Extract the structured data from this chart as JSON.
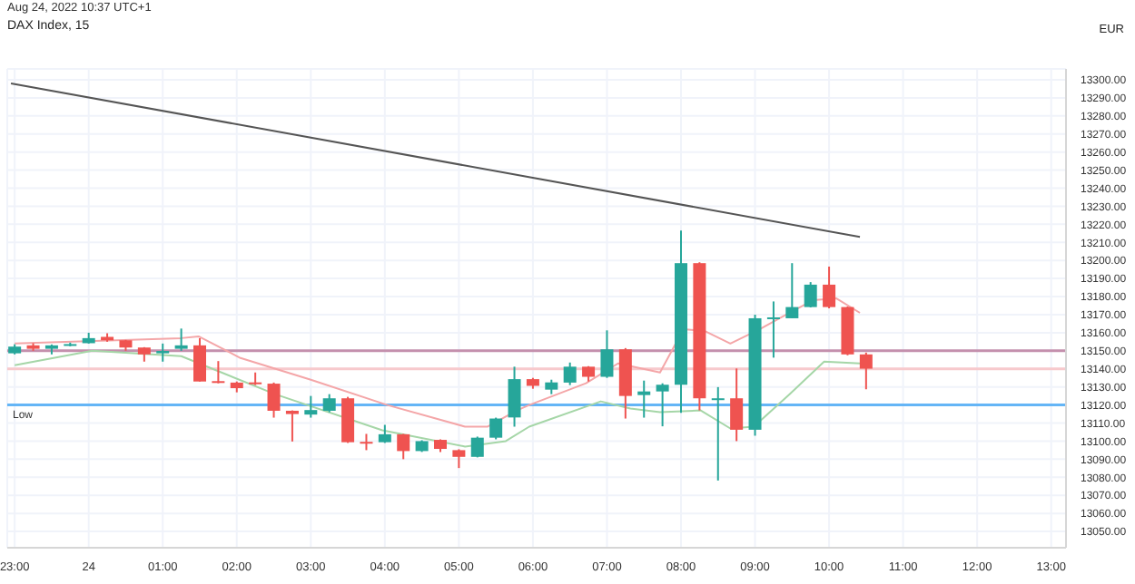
{
  "chart_data": {
    "type": "candlestick",
    "title": "DAX Index, 15",
    "annotations": [
      "Aug 24, 2022 10:37 UTC+1"
    ],
    "ylabel": "EUR",
    "grid": true,
    "xlim": [
      "2022-08-23T22:54",
      "2022-08-24T13:12"
    ],
    "xticks": [
      {
        "value": "2022-08-23T23:00",
        "label": "23:00"
      },
      {
        "value": "2022-08-24T00:00",
        "label": "24"
      },
      {
        "value": "2022-08-24T01:00",
        "label": "01:00"
      },
      {
        "value": "2022-08-24T02:00",
        "label": "02:00"
      },
      {
        "value": "2022-08-24T03:00",
        "label": "03:00"
      },
      {
        "value": "2022-08-24T04:00",
        "label": "04:00"
      },
      {
        "value": "2022-08-24T05:00",
        "label": "05:00"
      },
      {
        "value": "2022-08-24T06:00",
        "label": "06:00"
      },
      {
        "value": "2022-08-24T07:00",
        "label": "07:00"
      },
      {
        "value": "2022-08-24T08:00",
        "label": "08:00"
      },
      {
        "value": "2022-08-24T09:00",
        "label": "09:00"
      },
      {
        "value": "2022-08-24T10:00",
        "label": "10:00"
      },
      {
        "value": "2022-08-24T11:00",
        "label": "11:00"
      },
      {
        "value": "2022-08-24T12:00",
        "label": "12:00"
      },
      {
        "value": "2022-08-24T13:00",
        "label": "13:00"
      }
    ],
    "ylim": [
      13041,
      13306
    ],
    "yticks": [
      {
        "value": 13050,
        "label": "13050.00"
      },
      {
        "value": 13060,
        "label": "13060.00"
      },
      {
        "value": 13070,
        "label": "13070.00"
      },
      {
        "value": 13080,
        "label": "13080.00"
      },
      {
        "value": 13090,
        "label": "13090.00"
      },
      {
        "value": 13100,
        "label": "13100.00"
      },
      {
        "value": 13110,
        "label": "13110.00"
      },
      {
        "value": 13120,
        "label": "13120.00"
      },
      {
        "value": 13130,
        "label": "13130.00"
      },
      {
        "value": 13140,
        "label": "13140.00"
      },
      {
        "value": 13150,
        "label": "13150.00"
      },
      {
        "value": 13160,
        "label": "13160.00"
      },
      {
        "value": 13170,
        "label": "13170.00"
      },
      {
        "value": 13180,
        "label": "13180.00"
      },
      {
        "value": 13190,
        "label": "13190.00"
      },
      {
        "value": 13200,
        "label": "13200.00"
      },
      {
        "value": 13210,
        "label": "13210.00"
      },
      {
        "value": 13220,
        "label": "13220.00"
      },
      {
        "value": 13230,
        "label": "13230.00"
      },
      {
        "value": 13240,
        "label": "13240.00"
      },
      {
        "value": 13250,
        "label": "13250.00"
      },
      {
        "value": 13260,
        "label": "13260.00"
      },
      {
        "value": 13270,
        "label": "13270.00"
      },
      {
        "value": 13280,
        "label": "13280.00"
      },
      {
        "value": 13290,
        "label": "13290.00"
      },
      {
        "value": 13300,
        "label": "13300.00"
      }
    ],
    "ref_lines": [
      {
        "axis": "y",
        "value": 13150,
        "color": "#c490ad"
      },
      {
        "axis": "y",
        "value": 13140,
        "color": "#f7c9cc"
      },
      {
        "axis": "y",
        "value": 13120,
        "label": "Low",
        "color": "#64b5f6"
      }
    ],
    "series": [
      {
        "type": "line",
        "color": "#f4a6a8",
        "x": [
          "2022-08-23T23:00",
          "2022-08-24T01:15",
          "2022-08-24T01:29",
          "2022-08-24T02:03",
          "2022-08-24T03:00",
          "2022-08-24T04:02",
          "2022-08-24T05:05",
          "2022-08-24T05:23",
          "2022-08-24T05:47",
          "2022-08-24T05:57",
          "2022-08-24T06:43",
          "2022-08-24T07:09",
          "2022-08-24T07:43",
          "2022-08-24T08:02",
          "2022-08-24T08:19",
          "2022-08-24T08:40",
          "2022-08-24T09:04",
          "2022-08-24T09:28",
          "2022-08-24T09:47",
          "2022-08-24T10:06",
          "2022-08-24T10:25"
        ],
        "values": [
          13154,
          13157,
          13158,
          13146,
          13134,
          13120,
          13108,
          13108,
          13117,
          13120,
          13132,
          13143,
          13138,
          13162,
          13161,
          13154,
          13162,
          13171,
          13178,
          13179,
          13171
        ]
      },
      {
        "type": "line",
        "color": "#a5d6a7",
        "x": [
          "2022-08-23T23:00",
          "2022-08-24T00:03",
          "2022-08-24T01:15",
          "2022-08-24T02:31",
          "2022-08-24T03:58",
          "2022-08-24T05:05",
          "2022-08-24T05:38",
          "2022-08-24T05:57",
          "2022-08-24T06:55",
          "2022-08-24T07:19",
          "2022-08-24T07:43",
          "2022-08-24T08:16",
          "2022-08-24T08:40",
          "2022-08-24T08:59",
          "2022-08-24T09:28",
          "2022-08-24T09:56",
          "2022-08-24T10:25"
        ],
        "values": [
          13142,
          13150,
          13147,
          13126,
          13106,
          13097,
          13100,
          13108,
          13122,
          13118,
          13116,
          13117,
          13107,
          13108,
          13126,
          13144,
          13143
        ]
      },
      {
        "type": "line",
        "color": "#555555",
        "x": [
          "2022-08-23T22:57",
          "2022-08-24T10:25"
        ],
        "values": [
          13298,
          13213
        ]
      },
      {
        "x": [
          "2022-08-23T23:00",
          "2022-08-23T23:15",
          "2022-08-23T23:30",
          "2022-08-23T23:45",
          "2022-08-24T00:00",
          "2022-08-24T00:15",
          "2022-08-24T00:30",
          "2022-08-24T00:45",
          "2022-08-24T01:00",
          "2022-08-24T01:15",
          "2022-08-24T01:30",
          "2022-08-24T01:45",
          "2022-08-24T02:00",
          "2022-08-24T02:15",
          "2022-08-24T02:30",
          "2022-08-24T02:45",
          "2022-08-24T03:00",
          "2022-08-24T03:15",
          "2022-08-24T03:30",
          "2022-08-24T03:45",
          "2022-08-24T04:00",
          "2022-08-24T04:15",
          "2022-08-24T04:30",
          "2022-08-24T04:45",
          "2022-08-24T05:00",
          "2022-08-24T05:15",
          "2022-08-24T05:30",
          "2022-08-24T05:45",
          "2022-08-24T06:00",
          "2022-08-24T06:15",
          "2022-08-24T06:30",
          "2022-08-24T06:45",
          "2022-08-24T07:00",
          "2022-08-24T07:15",
          "2022-08-24T07:30",
          "2022-08-24T07:45",
          "2022-08-24T08:00",
          "2022-08-24T08:15",
          "2022-08-24T08:30",
          "2022-08-24T08:45",
          "2022-08-24T09:00",
          "2022-08-24T09:15",
          "2022-08-24T09:30",
          "2022-08-24T09:45",
          "2022-08-24T10:00",
          "2022-08-24T10:15",
          "2022-08-24T10:30"
        ],
        "ohlc": [
          [
            13148.6,
            13153.6,
            13148,
            13152.3
          ],
          [
            13153,
            13154.2,
            13150,
            13151.1
          ],
          [
            13151.1,
            13153.5,
            13148,
            13153
          ],
          [
            13153.6,
            13154.5,
            13152.5,
            13153.7
          ],
          [
            13154.2,
            13160,
            13154,
            13157
          ],
          [
            13157.7,
            13159.7,
            13155,
            13155.8
          ],
          [
            13155.8,
            13156,
            13150,
            13151.8
          ],
          [
            13151.8,
            13152,
            13144,
            13148
          ],
          [
            13148.6,
            13154,
            13144,
            13149.9
          ],
          [
            13151.1,
            13162.3,
            13150,
            13153
          ],
          [
            13153,
            13157,
            13133,
            13133
          ],
          [
            13133.2,
            13144.3,
            13132,
            13132.4
          ],
          [
            13132.4,
            13133,
            13127,
            13129.3
          ],
          [
            13132.5,
            13138,
            13131,
            13132.4
          ],
          [
            13131.8,
            13132.4,
            13113,
            13116.8
          ],
          [
            13116.8,
            13117,
            13099.8,
            13115
          ],
          [
            13114.7,
            13125,
            13113,
            13117.2
          ],
          [
            13116.8,
            13126,
            13116,
            13123.7
          ],
          [
            13123.7,
            13124.5,
            13099,
            13099.4
          ],
          [
            13099.6,
            13104,
            13095,
            13099.4
          ],
          [
            13099.4,
            13109,
            13099,
            13103.8
          ],
          [
            13103.8,
            13104,
            13090,
            13094.5
          ],
          [
            13094.5,
            13100.5,
            13094,
            13100
          ],
          [
            13100.7,
            13101,
            13094,
            13095.7
          ],
          [
            13095,
            13095.5,
            13085.1,
            13091.3
          ],
          [
            13091.3,
            13102.5,
            13091,
            13101.9
          ],
          [
            13101.9,
            13113,
            13101,
            13112.5
          ],
          [
            13113.1,
            13141.2,
            13108,
            13134.3
          ],
          [
            13134.3,
            13135,
            13129,
            13130.6
          ],
          [
            13128.5,
            13134,
            13126,
            13132.5
          ],
          [
            13132.4,
            13143.5,
            13131,
            13141.2
          ],
          [
            13141.2,
            13141.5,
            13133,
            13135.6
          ],
          [
            13135.6,
            13161.3,
            13135,
            13150.8
          ],
          [
            13150.8,
            13151.5,
            13112.5,
            13125
          ],
          [
            13125.5,
            13133.5,
            13113,
            13127.5
          ],
          [
            13127.5,
            13132,
            13108.2,
            13131.2
          ],
          [
            13131.2,
            13216.6,
            13115.6,
            13198.5
          ],
          [
            13198.5,
            13199,
            13117,
            13123.7
          ],
          [
            13123.6,
            13129.9,
            13078.2,
            13123.7
          ],
          [
            13123.7,
            13140.2,
            13100,
            13106.3
          ],
          [
            13106.3,
            13170,
            13103,
            13168
          ],
          [
            13168,
            13177.3,
            13146.2,
            13168.5
          ],
          [
            13168,
            13198.5,
            13168,
            13174.2
          ],
          [
            13174.2,
            13188,
            13174,
            13186.6
          ],
          [
            13186.6,
            13196.6,
            13173.5,
            13174.2
          ],
          [
            13174.2,
            13174.5,
            13147.5,
            13148
          ],
          [
            13148,
            13149,
            13128.7,
            13140.1
          ]
        ],
        "colors": [
          "#26a69a",
          "#ef5350",
          "#26a69a",
          "#26a69a",
          "#26a69a",
          "#ef5350",
          "#ef5350",
          "#ef5350",
          "#26a69a",
          "#26a69a",
          "#ef5350",
          "#ef5350",
          "#ef5350",
          "#ef5350",
          "#ef5350",
          "#ef5350",
          "#26a69a",
          "#26a69a",
          "#ef5350",
          "#ef5350",
          "#26a69a",
          "#ef5350",
          "#26a69a",
          "#ef5350",
          "#ef5350",
          "#26a69a",
          "#26a69a",
          "#26a69a",
          "#ef5350",
          "#26a69a",
          "#26a69a",
          "#ef5350",
          "#26a69a",
          "#ef5350",
          "#26a69a",
          "#26a69a",
          "#26a69a",
          "#ef5350",
          "#26a69a",
          "#ef5350",
          "#26a69a",
          "#26a69a",
          "#26a69a",
          "#26a69a",
          "#ef5350",
          "#ef5350",
          "#ef5350"
        ]
      }
    ]
  }
}
